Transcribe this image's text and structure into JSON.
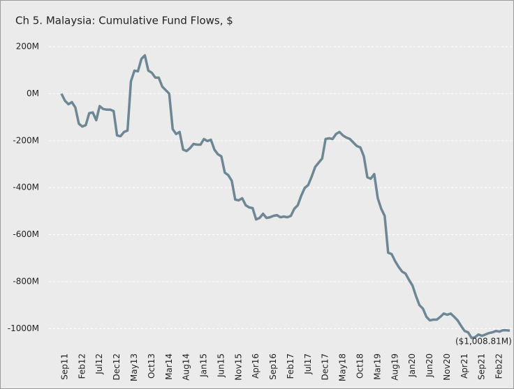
{
  "chart_data": {
    "type": "line",
    "title": "Ch 5. Malaysia:  Cumulative Fund Flows, $",
    "categories": [
      null,
      "Sep11",
      null,
      null,
      null,
      null,
      "Feb12",
      null,
      null,
      null,
      null,
      "Jul12",
      null,
      null,
      null,
      null,
      "Dec12",
      null,
      null,
      null,
      null,
      "May13",
      null,
      null,
      null,
      null,
      "Oct13",
      null,
      null,
      null,
      null,
      "Mar14",
      null,
      null,
      null,
      null,
      "Aug14",
      null,
      null,
      null,
      null,
      "Jan15",
      null,
      null,
      null,
      null,
      "Jun15",
      null,
      null,
      null,
      null,
      "Nov15",
      null,
      null,
      null,
      null,
      "Apr16",
      null,
      null,
      null,
      null,
      "Sep16",
      null,
      null,
      null,
      null,
      "Feb17",
      null,
      null,
      null,
      null,
      "Jul17",
      null,
      null,
      null,
      null,
      "Dec17",
      null,
      null,
      null,
      null,
      "May18",
      null,
      null,
      null,
      null,
      "Oct18",
      null,
      null,
      null,
      null,
      "Mar19",
      null,
      null,
      null,
      null,
      "Aug19",
      null,
      null,
      null,
      null,
      "Jan20",
      null,
      null,
      null,
      null,
      "Jun20",
      null,
      null,
      null,
      null,
      "Nov20",
      null,
      null,
      null,
      null,
      "Apr21",
      null,
      null,
      null,
      null,
      "Sep21",
      null,
      null,
      null,
      null,
      "Feb22",
      null,
      null,
      null
    ],
    "series": [
      {
        "name": "Cumulative Fund Flows",
        "color": "#6e8794",
        "values": [
          0,
          -30,
          -45,
          -36,
          -59,
          -128,
          -140,
          -134,
          -83,
          -80,
          -113,
          -53,
          -65,
          -68,
          -68,
          -74,
          -178,
          -181,
          -163,
          -157,
          53,
          98,
          95,
          148,
          163,
          98,
          89,
          68,
          68,
          30,
          15,
          0,
          -151,
          -172,
          -163,
          -238,
          -244,
          -232,
          -214,
          -217,
          -217,
          -193,
          -202,
          -196,
          -238,
          -258,
          -267,
          -336,
          -347,
          -371,
          -451,
          -454,
          -445,
          -475,
          -484,
          -487,
          -535,
          -529,
          -511,
          -529,
          -526,
          -520,
          -517,
          -526,
          -523,
          -526,
          -520,
          -490,
          -475,
          -434,
          -401,
          -389,
          -353,
          -312,
          -294,
          -276,
          -193,
          -190,
          -193,
          -172,
          -163,
          -178,
          -187,
          -193,
          -208,
          -223,
          -229,
          -267,
          -356,
          -362,
          -342,
          -445,
          -490,
          -520,
          -677,
          -683,
          -713,
          -737,
          -757,
          -766,
          -793,
          -817,
          -861,
          -900,
          -915,
          -950,
          -965,
          -962,
          -962,
          -950,
          -936,
          -941,
          -936,
          -950,
          -965,
          -989,
          -1010,
          -1016,
          -1040,
          -1037,
          -1025,
          -1031,
          -1025,
          -1019,
          -1016,
          -1010,
          -1013,
          -1007,
          -1007,
          -1008.81
        ]
      }
    ],
    "ylim": [
      -1085,
      280
    ],
    "yticks": [
      {
        "value": 200,
        "label": "200M"
      },
      {
        "value": 0,
        "label": "0M"
      },
      {
        "value": -200,
        "label": "-200M"
      },
      {
        "value": -400,
        "label": "-400M"
      },
      {
        "value": -600,
        "label": "-600M"
      },
      {
        "value": -800,
        "label": "-800M"
      },
      {
        "value": -1000,
        "label": "-1000M"
      }
    ],
    "grid": true,
    "annotations": [
      {
        "text": "($1,008.81M)"
      }
    ]
  }
}
